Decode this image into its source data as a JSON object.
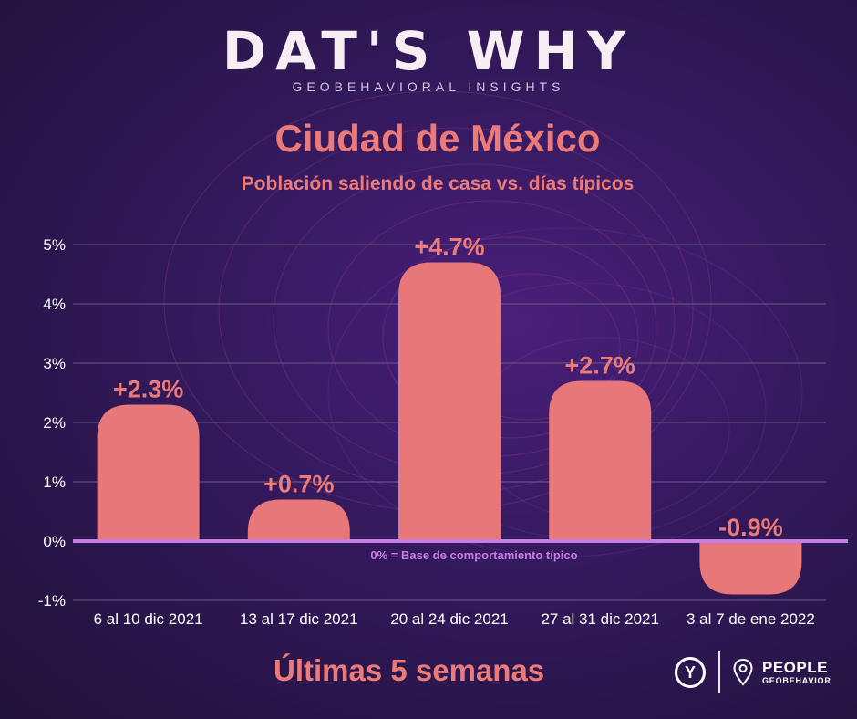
{
  "header": {
    "logo": "DAT'S WHY",
    "tagline": "GEOBEHAVIORAL INSIGHTS"
  },
  "chart_data": {
    "type": "bar",
    "title": "Ciudad de México",
    "subtitle": "Población saliendo de casa vs. días típicos",
    "categories": [
      "6 al 10 dic 2021",
      "13 al 17 dic 2021",
      "20 al 24 dic 2021",
      "27 al 31 dic 2021",
      "3 al 7 de ene 2022"
    ],
    "values": [
      2.3,
      0.7,
      4.7,
      2.7,
      -0.9
    ],
    "data_labels": [
      "+2.3%",
      "+0.7%",
      "+4.7%",
      "+2.7%",
      "-0.9%"
    ],
    "ylim": [
      -1,
      5
    ],
    "yticks": [
      5,
      4,
      3,
      2,
      1,
      0,
      -1
    ],
    "ytick_labels": [
      "5%",
      "4%",
      "3%",
      "2%",
      "1%",
      "0%",
      "-1%"
    ],
    "baseline_note": "0% = Base de comportamiento típico",
    "grid": true,
    "colors": {
      "bar": "#e8777a",
      "label": "#ec7a78",
      "baseline": "#c67ee6",
      "grid": "#6a5a86",
      "tick_text": "#ffffff"
    }
  },
  "footer": {
    "title": "Últimas 5 semanas",
    "brand_y": "Y",
    "brand_name": "PEOPLE",
    "brand_sub": "GEOBEHAVIOR"
  }
}
